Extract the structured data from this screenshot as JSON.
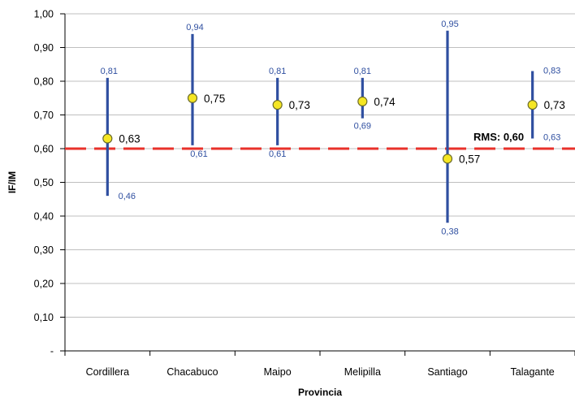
{
  "chart_data": {
    "type": "scatter",
    "xlabel": "Provincia",
    "ylabel": "IF/IM",
    "ylim": [
      0,
      1
    ],
    "y_ticks": [
      {
        "value": 0,
        "label": "-"
      },
      {
        "value": 0.1,
        "label": "0,10"
      },
      {
        "value": 0.2,
        "label": "0,20"
      },
      {
        "value": 0.3,
        "label": "0,30"
      },
      {
        "value": 0.4,
        "label": "0,40"
      },
      {
        "value": 0.5,
        "label": "0,50"
      },
      {
        "value": 0.6,
        "label": "0,60"
      },
      {
        "value": 0.7,
        "label": "0,70"
      },
      {
        "value": 0.8,
        "label": "0,80"
      },
      {
        "value": 0.9,
        "label": "0,90"
      },
      {
        "value": 1.0,
        "label": "1,00"
      }
    ],
    "grid": true,
    "legend": "none",
    "categories": [
      "Cordillera",
      "Chacabuco",
      "Maipo",
      "Melipilla",
      "Santiago",
      "Talagante"
    ],
    "points": [
      {
        "category": "Cordillera",
        "mean": 0.63,
        "mean_label": "0,63",
        "max": 0.81,
        "max_label": "0,81",
        "min": 0.46,
        "min_label": "0,46"
      },
      {
        "category": "Chacabuco",
        "mean": 0.75,
        "mean_label": "0,75",
        "max": 0.94,
        "max_label": "0,94",
        "min": 0.61,
        "min_label": "0,61"
      },
      {
        "category": "Maipo",
        "mean": 0.73,
        "mean_label": "0,73",
        "max": 0.81,
        "max_label": "0,81",
        "min": 0.61,
        "min_label": "0,61"
      },
      {
        "category": "Melipilla",
        "mean": 0.74,
        "mean_label": "0,74",
        "max": 0.81,
        "max_label": "0,81",
        "min": 0.69,
        "min_label": "0,69"
      },
      {
        "category": "Santiago",
        "mean": 0.57,
        "mean_label": "0,57",
        "max": 0.95,
        "max_label": "0,95",
        "min": 0.38,
        "min_label": "0,38"
      },
      {
        "category": "Talagante",
        "mean": 0.73,
        "mean_label": "0,73",
        "max": 0.83,
        "max_label": "0,83",
        "min": 0.63,
        "min_label": "0,63"
      }
    ],
    "reference_line": {
      "value": 0.6,
      "label": "RMS: 0,60",
      "color": "#e8312a"
    },
    "colors": {
      "range_bar": "#2f4fa0",
      "range_label": "#2f4fa0",
      "marker_fill": "#f5e623",
      "marker_stroke": "#6b6b2a",
      "grid": "#bfbfbf",
      "axis": "#000000"
    }
  }
}
